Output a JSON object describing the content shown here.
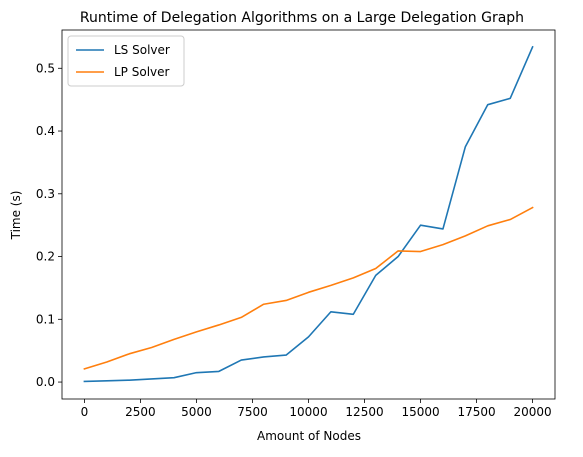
{
  "chart_data": {
    "type": "line",
    "title": "Runtime of Delegation Algorithms on a Large Delegation Graph",
    "xlabel": "Amount of Nodes",
    "ylabel": "Time (s)",
    "xlim": [
      -1000,
      21000
    ],
    "ylim": [
      -0.027,
      0.561
    ],
    "x_ticks": [
      0,
      2500,
      5000,
      7500,
      10000,
      12500,
      15000,
      17500,
      20000
    ],
    "y_ticks": [
      0.0,
      0.1,
      0.2,
      0.3,
      0.4,
      0.5
    ],
    "x_tick_labels": [
      "0",
      "2500",
      "5000",
      "7500",
      "10000",
      "12500",
      "15000",
      "17500",
      "20000"
    ],
    "y_tick_labels": [
      "0.0",
      "0.1",
      "0.2",
      "0.3",
      "0.4",
      "0.5"
    ],
    "grid": false,
    "legend_position": "upper-left",
    "x": [
      0,
      1000,
      2000,
      3000,
      4000,
      5000,
      6000,
      7000,
      8000,
      9000,
      10000,
      11000,
      12000,
      13000,
      14000,
      15000,
      16000,
      17000,
      18000,
      19000,
      20000
    ],
    "series": [
      {
        "name": "LS Solver",
        "color": "#1f77b4",
        "values": [
          0.001,
          0.002,
          0.003,
          0.005,
          0.007,
          0.015,
          0.017,
          0.035,
          0.04,
          0.043,
          0.072,
          0.112,
          0.108,
          0.17,
          0.2,
          0.25,
          0.244,
          0.375,
          0.442,
          0.452,
          0.534
        ]
      },
      {
        "name": "LP Solver",
        "color": "#ff7f0e",
        "values": [
          0.021,
          0.032,
          0.045,
          0.055,
          0.068,
          0.08,
          0.091,
          0.103,
          0.124,
          0.13,
          0.143,
          0.154,
          0.166,
          0.181,
          0.209,
          0.208,
          0.219,
          0.233,
          0.249,
          0.259,
          0.278
        ]
      }
    ]
  }
}
